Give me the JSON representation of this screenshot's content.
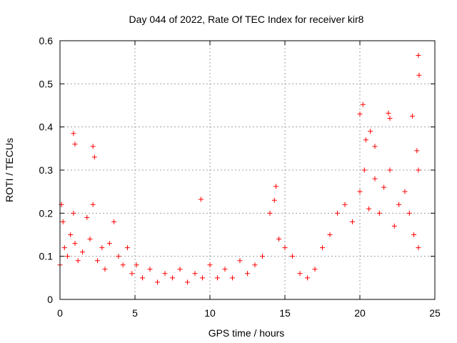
{
  "chart_data": {
    "type": "scatter",
    "title": "Day 044 of 2022, Rate Of TEC Index for receiver kir8",
    "xlabel": "GPS time / hours",
    "ylabel": "ROTI / TECUs",
    "xlim": [
      0,
      25
    ],
    "ylim": [
      0,
      0.6
    ],
    "xticks": [
      0,
      5,
      10,
      15,
      20,
      25
    ],
    "xtick_labels": [
      "0",
      "5",
      "10",
      "15",
      "20",
      "25"
    ],
    "yticks": [
      0,
      0.1,
      0.2,
      0.3,
      0.4,
      0.5,
      0.6
    ],
    "ytick_labels": [
      "0",
      "0.1",
      "0.2",
      "0.3",
      "0.4",
      "0.5",
      "0.6"
    ],
    "grid": true,
    "legend": "none",
    "marker": "plus",
    "color": "#ff0000",
    "series": [
      {
        "x": [
          0.0,
          0.1,
          0.2,
          0.3,
          0.5,
          0.7,
          0.9,
          1.0,
          1.2,
          1.5,
          1.8,
          2.0,
          2.2,
          2.5,
          2.8,
          3.0,
          3.3,
          3.6,
          3.9,
          4.2,
          4.5,
          4.8,
          5.1,
          5.5,
          6.0,
          6.5,
          7.0,
          7.5,
          8.0,
          8.5,
          9.0,
          9.5,
          10.0,
          10.5,
          11.0,
          11.5,
          12.0,
          12.5,
          13.0,
          13.5,
          14.0,
          14.3,
          14.6,
          15.0,
          15.5,
          16.0,
          16.5,
          17.0,
          17.5,
          18.0,
          18.5,
          19.0,
          19.5,
          20.0,
          20.3,
          20.6,
          21.0,
          21.3,
          21.6,
          22.0,
          22.3,
          22.6,
          23.0,
          23.3,
          23.6,
          23.9,
          0.9,
          1.0,
          2.2,
          2.3,
          9.4,
          14.4,
          20.0,
          20.2,
          20.4,
          20.7,
          21.0,
          21.9,
          22.0,
          23.5,
          23.8,
          23.9,
          23.95,
          23.9
        ],
        "y": [
          0.08,
          0.22,
          0.18,
          0.12,
          0.1,
          0.15,
          0.2,
          0.13,
          0.09,
          0.11,
          0.19,
          0.14,
          0.22,
          0.09,
          0.12,
          0.07,
          0.13,
          0.18,
          0.1,
          0.08,
          0.12,
          0.06,
          0.08,
          0.05,
          0.07,
          0.04,
          0.06,
          0.05,
          0.07,
          0.04,
          0.06,
          0.05,
          0.08,
          0.05,
          0.07,
          0.05,
          0.09,
          0.06,
          0.08,
          0.1,
          0.2,
          0.23,
          0.14,
          0.12,
          0.1,
          0.06,
          0.05,
          0.07,
          0.12,
          0.15,
          0.2,
          0.22,
          0.18,
          0.25,
          0.3,
          0.21,
          0.28,
          0.2,
          0.26,
          0.3,
          0.17,
          0.22,
          0.25,
          0.2,
          0.15,
          0.12,
          0.385,
          0.36,
          0.355,
          0.33,
          0.232,
          0.262,
          0.43,
          0.452,
          0.37,
          0.39,
          0.355,
          0.432,
          0.42,
          0.425,
          0.345,
          0.566,
          0.52,
          0.3
        ]
      }
    ]
  }
}
